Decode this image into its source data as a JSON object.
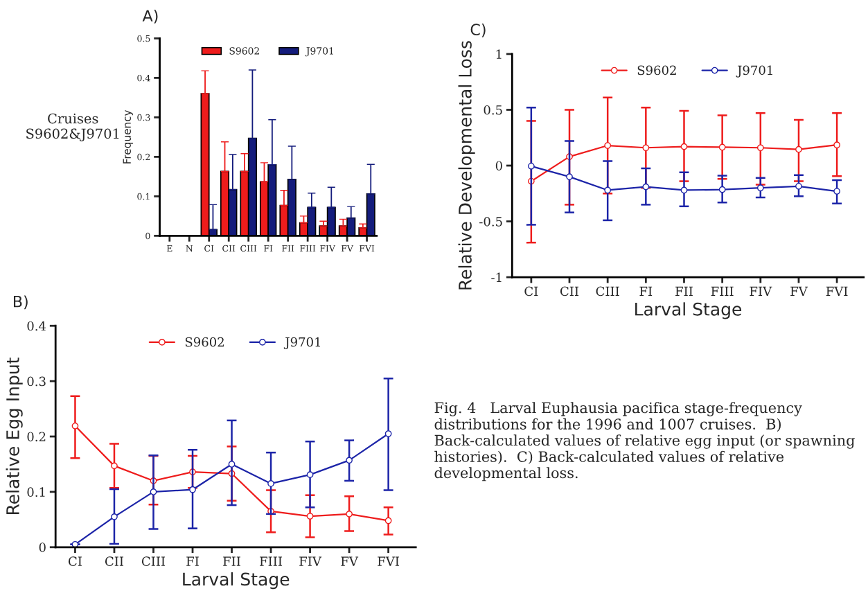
{
  "chart_data": [
    {
      "type": "bar",
      "title": "A)",
      "ylabel": "Frequency",
      "categories": [
        "E",
        "N",
        "CI",
        "CII",
        "CIII",
        "FI",
        "FII",
        "FIII",
        "FIV",
        "FV",
        "FVI"
      ],
      "ylim": [
        0,
        0.5
      ],
      "yticks": [
        0,
        0.1,
        0.2,
        0.3,
        0.4,
        0.5
      ],
      "legend": "top",
      "grid": false,
      "annotations": [
        "Cruises\nS9602&J9701"
      ],
      "series": [
        {
          "name": "S9602",
          "color": "#ee1c1c",
          "values": [
            null,
            null,
            0.36,
            0.163,
            0.163,
            0.137,
            0.077,
            0.033,
            0.025,
            0.025,
            0.02
          ],
          "errors": [
            null,
            null,
            [
              0.36,
              0.418
            ],
            [
              0.163,
              0.238
            ],
            [
              0.163,
              0.208
            ],
            [
              0.137,
              0.185
            ],
            [
              0.077,
              0.115
            ],
            [
              0.033,
              0.05
            ],
            [
              0.025,
              0.037
            ],
            [
              0.025,
              0.042
            ],
            [
              0.02,
              0.03
            ]
          ]
        },
        {
          "name": "J9701",
          "color": "#141c7c",
          "values": [
            null,
            null,
            0.016,
            0.117,
            0.247,
            0.18,
            0.143,
            0.072,
            0.072,
            0.045,
            0.106
          ],
          "errors": [
            null,
            null,
            [
              0.016,
              0.079
            ],
            [
              0.117,
              0.206
            ],
            [
              0.247,
              0.42
            ],
            [
              0.18,
              0.294
            ],
            [
              0.143,
              0.227
            ],
            [
              0.072,
              0.108
            ],
            [
              0.072,
              0.123
            ],
            [
              0.045,
              0.074
            ],
            [
              0.106,
              0.181
            ]
          ]
        }
      ]
    },
    {
      "type": "line",
      "title": "B)",
      "xlabel": "Larval Stage",
      "ylabel": "Relative Egg Input",
      "categories": [
        "CI",
        "CII",
        "CIII",
        "FI",
        "FII",
        "FIII",
        "FIV",
        "FV",
        "FVI"
      ],
      "ylim": [
        0,
        0.4
      ],
      "yticks": [
        0,
        0.1,
        0.2,
        0.3,
        0.4
      ],
      "legend": "top",
      "grid": false,
      "marker": "circle",
      "series": [
        {
          "name": "S9602",
          "color": "#ee1c1c",
          "values": [
            0.219,
            0.147,
            0.12,
            0.136,
            0.133,
            0.065,
            0.056,
            0.06,
            0.048
          ],
          "errors": [
            [
              0.161,
              0.273
            ],
            [
              0.107,
              0.187
            ],
            [
              0.077,
              0.165
            ],
            [
              0.107,
              0.165
            ],
            [
              0.084,
              0.182
            ],
            [
              0.027,
              0.103
            ],
            [
              0.018,
              0.094
            ],
            [
              0.029,
              0.092
            ],
            [
              0.023,
              0.072
            ]
          ]
        },
        {
          "name": "J9701",
          "color": "#1c24a8",
          "values": [
            0.005,
            0.055,
            0.1,
            0.104,
            0.15,
            0.115,
            0.131,
            0.157,
            0.205
          ],
          "errors": [
            null,
            [
              0.006,
              0.105
            ],
            [
              0.033,
              0.166
            ],
            [
              0.034,
              0.176
            ],
            [
              0.076,
              0.229
            ],
            [
              0.06,
              0.171
            ],
            [
              0.072,
              0.191
            ],
            [
              0.12,
              0.193
            ],
            [
              0.103,
              0.305
            ]
          ]
        }
      ]
    },
    {
      "type": "line",
      "title": "C)",
      "xlabel": "Larval Stage",
      "ylabel": "Relative Developmental Loss",
      "categories": [
        "CI",
        "CII",
        "CIII",
        "FI",
        "FII",
        "FIII",
        "FIV",
        "FV",
        "FVI"
      ],
      "ylim": [
        -1,
        1
      ],
      "yticks": [
        -1,
        -0.5,
        0,
        0.5,
        1
      ],
      "legend": "top",
      "grid": false,
      "marker": "circle",
      "annotations": [
        "Fig. 4   Larval Euphausia pacifica stage-frequency distributions for the 1996 and 1007 cruises.  B) Back-calculated values of relative egg input (or spawning histories).  C) Back-calculated values of relative developmental loss."
      ],
      "series": [
        {
          "name": "S9602",
          "color": "#ee1c1c",
          "values": [
            -0.14,
            0.08,
            0.18,
            0.16,
            0.17,
            0.165,
            0.16,
            0.145,
            0.185
          ],
          "errors": [
            [
              -0.69,
              0.4
            ],
            [
              -0.35,
              0.5
            ],
            [
              -0.25,
              0.61
            ],
            [
              -0.2,
              0.52
            ],
            [
              -0.14,
              0.49
            ],
            [
              -0.12,
              0.45
            ],
            [
              -0.17,
              0.47
            ],
            [
              -0.14,
              0.41
            ],
            [
              -0.095,
              0.47
            ]
          ]
        },
        {
          "name": "J9701",
          "color": "#1c24a8",
          "values": [
            -0.005,
            -0.1,
            -0.22,
            -0.19,
            -0.22,
            -0.215,
            -0.2,
            -0.185,
            -0.23
          ],
          "errors": [
            [
              -0.53,
              0.52
            ],
            [
              -0.42,
              0.22
            ],
            [
              -0.49,
              0.04
            ],
            [
              -0.35,
              -0.025
            ],
            [
              -0.365,
              -0.06
            ],
            [
              -0.33,
              -0.09
            ],
            [
              -0.285,
              -0.11
            ],
            [
              -0.275,
              -0.085
            ],
            [
              -0.34,
              -0.13
            ]
          ]
        }
      ]
    }
  ]
}
